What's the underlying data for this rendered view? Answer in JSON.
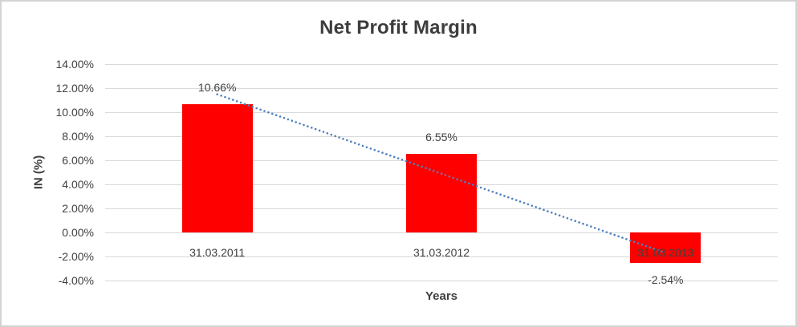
{
  "chart_data": {
    "type": "bar",
    "title": "Net Profit Margin",
    "xlabel": "Years",
    "ylabel": "IN (%)",
    "categories": [
      "31.03.2011",
      "31.03.2012",
      "31.03.2013"
    ],
    "values": [
      10.66,
      6.55,
      -2.54
    ],
    "data_labels": [
      "10.66%",
      "6.55%",
      "-2.54%"
    ],
    "ytick_labels": [
      "14.00%",
      "12.00%",
      "10.00%",
      "8.00%",
      "6.00%",
      "4.00%",
      "2.00%",
      "0.00%",
      "-2.00%",
      "-4.00%"
    ],
    "ylim": [
      -4,
      14
    ],
    "ytick_step": 2,
    "grid": true,
    "legend": "none",
    "bar_color": "#FF0000",
    "grid_color": "#D9D9D9",
    "text_color": "#404040",
    "border_color": "#D3D3D3",
    "trendline": {
      "type": "linear",
      "style": "dotted",
      "color": "#4E81BD"
    }
  }
}
